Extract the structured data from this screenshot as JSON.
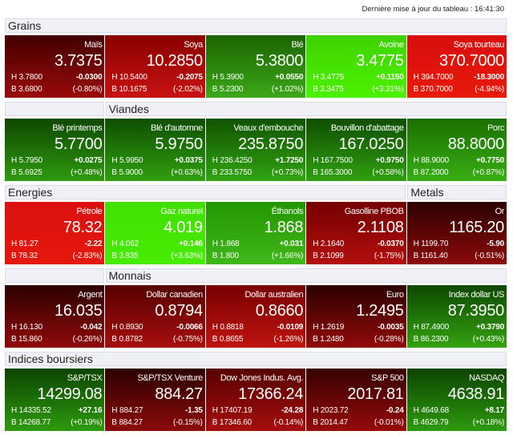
{
  "updated_label": "Dernière mise à jour du tableau : 16:41:30",
  "sections": [
    {
      "headers": [
        {
          "label": "Grains",
          "span": 5
        }
      ],
      "tiles": [
        {
          "name": "Maïs",
          "value": "3.7375",
          "high": "H 3.7800",
          "low": "B 3.6800",
          "change": "-0.0300",
          "pct": "(-0.80%)",
          "top": "#440000",
          "bottom": "#9a0a0a"
        },
        {
          "name": "Soya",
          "value": "10.2850",
          "high": "H 10.5400",
          "low": "B 10.1675",
          "change": "-0.2075",
          "pct": "(-2.02%)",
          "top": "#8a0000",
          "bottom": "#c81212"
        },
        {
          "name": "Blé",
          "value": "5.3800",
          "high": "H 5.3900",
          "low": "B 5.2300",
          "change": "+0.0550",
          "pct": "(+1.02%)",
          "top": "#1a6400",
          "bottom": "#3ca81a"
        },
        {
          "name": "Avoine",
          "value": "3.4775",
          "high": "H 3.4775",
          "low": "B 3.3475",
          "change": "+0.1150",
          "pct": "(+3.31%)",
          "top": "#3ed200",
          "bottom": "#4cf200"
        },
        {
          "name": "Soya tourteau",
          "value": "370.7000",
          "high": "H 394.7000",
          "low": "B 370.7000",
          "change": "-18.3000",
          "pct": "(-4.94%)",
          "top": "#d80e0e",
          "bottom": "#e81a0a"
        }
      ]
    },
    {
      "headers": [
        {
          "label": "",
          "span": 1
        },
        {
          "label": "Viandes",
          "span": 4
        }
      ],
      "tiles": [
        {
          "name": "Blé printemps",
          "value": "5.7700",
          "high": "H 5.7950",
          "low": "B 5.6925",
          "change": "+0.0275",
          "pct": "(+0.48%)",
          "top": "#0e4800",
          "bottom": "#2e9a0e"
        },
        {
          "name": "Blé d'automne",
          "value": "5.9750",
          "high": "H 5.9950",
          "low": "B 5.9000",
          "change": "+0.0375",
          "pct": "(+0.63%)",
          "top": "#0e4e00",
          "bottom": "#30a010"
        },
        {
          "name": "Veaux d'embouche",
          "value": "235.8750",
          "high": "H 236.4250",
          "low": "B 233.5750",
          "change": "+1.7250",
          "pct": "(+0.73%)",
          "top": "#105200",
          "bottom": "#32a412"
        },
        {
          "name": "Bouvillon d'abattage",
          "value": "167.0250",
          "high": "H 167.7500",
          "low": "B 165.3000",
          "change": "+0.9750",
          "pct": "(+0.58%)",
          "top": "#0e4e00",
          "bottom": "#30a010"
        },
        {
          "name": "Porc",
          "value": "88.8000",
          "high": "H 88.9000",
          "low": "B 87.2000",
          "change": "+0.7750",
          "pct": "(+0.87%)",
          "top": "#1a7000",
          "bottom": "#38ae14"
        }
      ]
    },
    {
      "headers": [
        {
          "label": "Energies",
          "span": 4
        },
        {
          "label": "Metals",
          "span": 1
        }
      ],
      "tiles": [
        {
          "name": "Pétrole",
          "value": "78.32",
          "high": "H 81.27",
          "low": "B 78.32",
          "change": "-2.22",
          "pct": "(-2.83%)",
          "top": "#dc1010",
          "bottom": "#e4180c"
        },
        {
          "name": "Gaz naturel",
          "value": "4.019",
          "high": "H 4.062",
          "low": "B 3.835",
          "change": "+0.146",
          "pct": "(+3.63%)",
          "top": "#40e000",
          "bottom": "#48ec04"
        },
        {
          "name": "Éthanols",
          "value": "1.868",
          "high": "H 1.868",
          "low": "B 1.800",
          "change": "+0.031",
          "pct": "(+1.66%)",
          "top": "#229600",
          "bottom": "#40b81a"
        },
        {
          "name": "Gasolline PBOB",
          "value": "2.1108",
          "high": "H 2.1640",
          "low": "B 2.1099",
          "change": "-0.0370",
          "pct": "(-1.75%)",
          "top": "#740000",
          "bottom": "#b40e0e"
        },
        {
          "name": "Or",
          "value": "1165.20",
          "high": "H 1199.70",
          "low": "B 1161.40",
          "change": "-5.90",
          "pct": "(-0.51%)",
          "top": "#2c0000",
          "bottom": "#8c0a0a"
        }
      ]
    },
    {
      "headers": [
        {
          "label": "",
          "span": 1
        },
        {
          "label": "Monnais",
          "span": 4
        }
      ],
      "tiles": [
        {
          "name": "Argent",
          "value": "16.035",
          "high": "H 16.130",
          "low": "B 15.860",
          "change": "-0.042",
          "pct": "(-0.26%)",
          "top": "#2c0000",
          "bottom": "#900a0a"
        },
        {
          "name": "Dollar canadien",
          "value": "0.8794",
          "high": "H 0.8930",
          "low": "B 0.8782",
          "change": "-0.0066",
          "pct": "(-0.75%)",
          "top": "#560000",
          "bottom": "#a80e0e"
        },
        {
          "name": "Dollar australien",
          "value": "0.8660",
          "high": "H 0.8818",
          "low": "B 0.8655",
          "change": "-0.0109",
          "pct": "(-1.26%)",
          "top": "#760000",
          "bottom": "#c01410"
        },
        {
          "name": "Euro",
          "value": "1.2495",
          "high": "H 1.2619",
          "low": "B 1.2480",
          "change": "-0.0035",
          "pct": "(-0.28%)",
          "top": "#2c0000",
          "bottom": "#920a0a"
        },
        {
          "name": "Index dollar US",
          "value": "87.3950",
          "high": "H 87.4900",
          "low": "B 86.2300",
          "change": "+0.3790",
          "pct": "(+0.43%)",
          "top": "#0e4800",
          "bottom": "#34a210"
        }
      ]
    },
    {
      "headers": [
        {
          "label": "Indices boursiers",
          "span": 5
        }
      ],
      "tiles": [
        {
          "name": "S&P/TSX",
          "value": "14299.08",
          "high": "H 14335.52",
          "low": "B 14268.77",
          "change": "+27.16",
          "pct": "(+0.19%)",
          "top": "#0c4400",
          "bottom": "#2e9a0e"
        },
        {
          "name": "S&P/TSX Venture",
          "value": "884.27",
          "high": "H 884.27",
          "low": "B 884.27",
          "change": "-1.35",
          "pct": "(-0.15%)",
          "top": "#2c0000",
          "bottom": "#8c0a0a"
        },
        {
          "name": "Dow Jones Indus. Avg.",
          "value": "17366.24",
          "high": "H 17407.19",
          "low": "B 17346.60",
          "change": "-24.28",
          "pct": "(-0.14%)",
          "top": "#560000",
          "bottom": "#a60e0e"
        },
        {
          "name": "S&P 500",
          "value": "2017.81",
          "high": "H 2023.72",
          "low": "B 2014.47",
          "change": "-0.24",
          "pct": "(-0.01%)",
          "top": "#360000",
          "bottom": "#960a0a"
        },
        {
          "name": "NASDAQ",
          "value": "4638.91",
          "high": "H 4649.68",
          "low": "B 4629.79",
          "change": "+8.17",
          "pct": "(+0.18%)",
          "top": "#0c4400",
          "bottom": "#2e9a0e"
        }
      ]
    }
  ]
}
